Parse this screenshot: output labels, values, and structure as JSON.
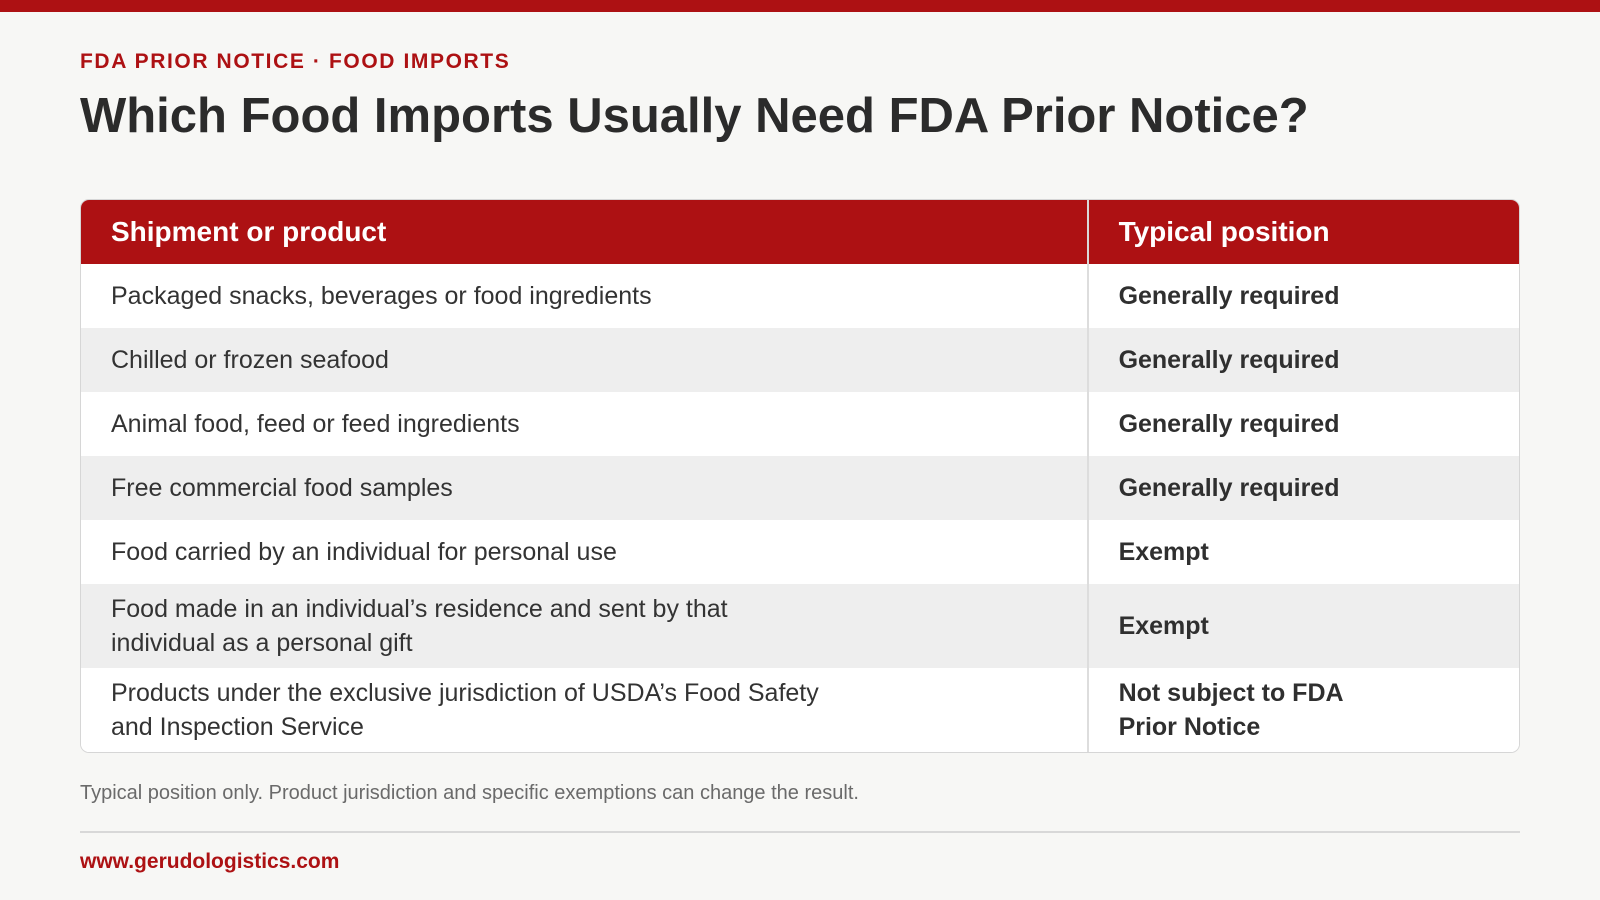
{
  "header": {
    "kicker": "FDA PRIOR NOTICE · FOOD IMPORTS",
    "title": "Which Food Imports Usually Need FDA Prior Notice?"
  },
  "colors": {
    "accent": "#ad1113",
    "background": "#f7f7f5",
    "row_alt": "#eeeeee"
  },
  "table": {
    "headers": [
      "Shipment or product",
      "Typical position"
    ],
    "rows": [
      {
        "product": "Packaged snacks, beverages or food ingredients",
        "position": "Generally required"
      },
      {
        "product": "Chilled or frozen seafood",
        "position": "Generally required"
      },
      {
        "product": "Animal food, feed or feed ingredients",
        "position": "Generally required"
      },
      {
        "product": "Free commercial food samples",
        "position": "Generally required"
      },
      {
        "product": "Food carried by an individual for personal use",
        "position": "Exempt"
      },
      {
        "product": "Food made in an individual’s residence and sent by that individual as a personal gift",
        "position": "Exempt"
      },
      {
        "product": "Products under the exclusive jurisdiction of USDA’s Food Safety and Inspection Service",
        "position": "Not subject to FDA Prior Notice"
      }
    ]
  },
  "footnote": "Typical position only. Product jurisdiction and specific exemptions can change the result.",
  "footer": {
    "url": "www.gerudologistics.com"
  }
}
